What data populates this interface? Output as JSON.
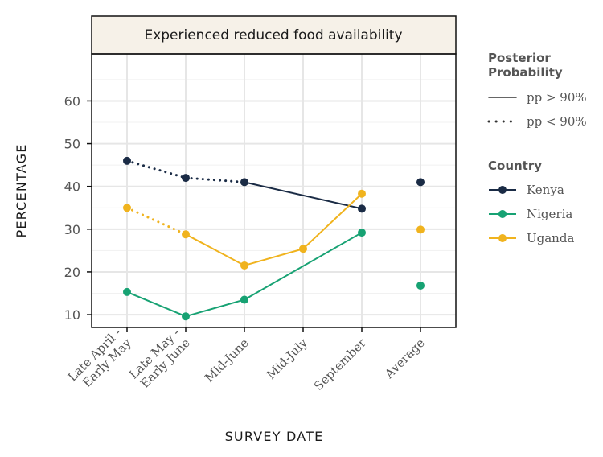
{
  "chart_data": {
    "type": "line",
    "title": "Experienced reduced food availability",
    "xlabel": "SURVEY DATE",
    "ylabel": "PERCENTAGE",
    "categories": [
      "Late April -\nEarly May",
      "Late May -\nEarly June",
      "Mid-June",
      "Mid-July",
      "September",
      "Average"
    ],
    "y_ticks": [
      10,
      20,
      30,
      40,
      50,
      60
    ],
    "ylim": [
      7,
      71
    ],
    "grid": true,
    "legend_placement": "right",
    "legend_pp": {
      "title": "Posterior\nProbability",
      "items": [
        {
          "label": "pp > 90%",
          "style": "solid"
        },
        {
          "label": "pp < 90%",
          "style": "dotted"
        }
      ]
    },
    "legend_country": {
      "title": "Country",
      "items": [
        "Kenya",
        "Nigeria",
        "Uganda"
      ]
    },
    "series": [
      {
        "name": "Kenya",
        "color": "#1a2b45",
        "points": [
          {
            "x": "Late April -\nEarly May",
            "y": 46
          },
          {
            "x": "Late May -\nEarly June",
            "y": 42
          },
          {
            "x": "Mid-June",
            "y": 41
          },
          {
            "x": "September",
            "y": 34.8
          },
          {
            "x": "Average",
            "y": 41
          }
        ],
        "segments": [
          {
            "from": 0,
            "to": 1,
            "style": "dotted"
          },
          {
            "from": 1,
            "to": 2,
            "style": "dotted"
          },
          {
            "from": 2,
            "to": 3,
            "style": "solid"
          }
        ]
      },
      {
        "name": "Nigeria",
        "color": "#17a273",
        "points": [
          {
            "x": "Late April -\nEarly May",
            "y": 15.3
          },
          {
            "x": "Late May -\nEarly June",
            "y": 9.6
          },
          {
            "x": "Mid-June",
            "y": 13.5
          },
          {
            "x": "September",
            "y": 29.2
          },
          {
            "x": "Average",
            "y": 16.8
          }
        ],
        "segments": [
          {
            "from": 0,
            "to": 1,
            "style": "solid"
          },
          {
            "from": 1,
            "to": 2,
            "style": "solid"
          },
          {
            "from": 2,
            "to": 3,
            "style": "solid"
          }
        ]
      },
      {
        "name": "Uganda",
        "color": "#f0b31e",
        "points": [
          {
            "x": "Late April -\nEarly May",
            "y": 35
          },
          {
            "x": "Late May -\nEarly June",
            "y": 28.8
          },
          {
            "x": "Mid-June",
            "y": 21.5
          },
          {
            "x": "Mid-July",
            "y": 25.4
          },
          {
            "x": "September",
            "y": 38.3
          },
          {
            "x": "Average",
            "y": 29.9
          }
        ],
        "segments": [
          {
            "from": 0,
            "to": 1,
            "style": "dotted"
          },
          {
            "from": 1,
            "to": 2,
            "style": "solid"
          },
          {
            "from": 2,
            "to": 3,
            "style": "solid"
          },
          {
            "from": 3,
            "to": 4,
            "style": "solid"
          }
        ]
      }
    ]
  }
}
